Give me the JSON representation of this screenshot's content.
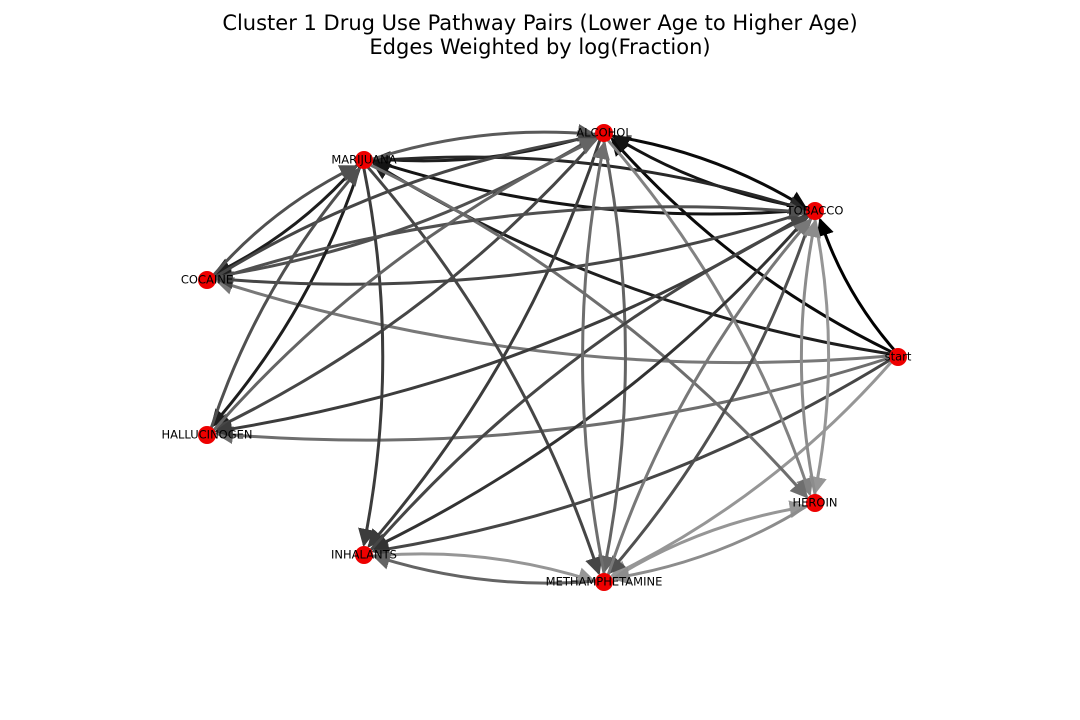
{
  "figure": {
    "title_line1": "Cluster 1 Drug Use Pathway Pairs (Lower Age to Higher Age)",
    "title_line2": "Edges Weighted by log(Fraction)"
  },
  "colors": {
    "node": "#ee0000",
    "background": "#ffffff"
  },
  "nodes": [
    {
      "id": "ALCOHOL",
      "label": "ALCOHOL"
    },
    {
      "id": "MARIJUANA",
      "label": "MARIJUANA"
    },
    {
      "id": "TOBACCO",
      "label": "TOBACCO"
    },
    {
      "id": "COCAINE",
      "label": "COCAINE"
    },
    {
      "id": "start",
      "label": "start"
    },
    {
      "id": "HALLUCINOGEN",
      "label": "HALLUCINOGEN"
    },
    {
      "id": "HEROIN",
      "label": "HEROIN"
    },
    {
      "id": "INHALANTS",
      "label": "INHALANTS"
    },
    {
      "id": "METHAMPHETAMINE",
      "label": "METHAMPHETAMINE"
    }
  ],
  "edges": [
    {
      "source": "start",
      "target": "TOBACCO",
      "gray": 0.0
    },
    {
      "source": "start",
      "target": "ALCOHOL",
      "gray": 0.05
    },
    {
      "source": "start",
      "target": "MARIJUANA",
      "gray": 0.15
    },
    {
      "source": "start",
      "target": "COCAINE",
      "gray": 0.6
    },
    {
      "source": "start",
      "target": "HALLUCINOGEN",
      "gray": 0.55
    },
    {
      "source": "start",
      "target": "INHALANTS",
      "gray": 0.35
    },
    {
      "source": "start",
      "target": "METHAMPHETAMINE",
      "gray": 0.75
    },
    {
      "source": "ALCOHOL",
      "target": "TOBACCO",
      "gray": 0.05
    },
    {
      "source": "TOBACCO",
      "target": "ALCOHOL",
      "gray": 0.1
    },
    {
      "source": "ALCOHOL",
      "target": "MARIJUANA",
      "gray": 0.15
    },
    {
      "source": "MARIJUANA",
      "target": "ALCOHOL",
      "gray": 0.45
    },
    {
      "source": "TOBACCO",
      "target": "MARIJUANA",
      "gray": 0.1
    },
    {
      "source": "MARIJUANA",
      "target": "TOBACCO",
      "gray": 0.2
    },
    {
      "source": "ALCOHOL",
      "target": "COCAINE",
      "gray": 0.4
    },
    {
      "source": "ALCOHOL",
      "target": "HALLUCINOGEN",
      "gray": 0.35
    },
    {
      "source": "ALCOHOL",
      "target": "INHALANTS",
      "gray": 0.3
    },
    {
      "source": "ALCOHOL",
      "target": "METHAMPHETAMINE",
      "gray": 0.5
    },
    {
      "source": "ALCOHOL",
      "target": "HEROIN",
      "gray": 0.65
    },
    {
      "source": "MARIJUANA",
      "target": "COCAINE",
      "gray": 0.15
    },
    {
      "source": "MARIJUANA",
      "target": "HALLUCINOGEN",
      "gray": 0.15
    },
    {
      "source": "MARIJUANA",
      "target": "INHALANTS",
      "gray": 0.3
    },
    {
      "source": "MARIJUANA",
      "target": "METHAMPHETAMINE",
      "gray": 0.35
    },
    {
      "source": "MARIJUANA",
      "target": "HEROIN",
      "gray": 0.55
    },
    {
      "source": "TOBACCO",
      "target": "COCAINE",
      "gray": 0.35
    },
    {
      "source": "TOBACCO",
      "target": "HALLUCINOGEN",
      "gray": 0.3
    },
    {
      "source": "TOBACCO",
      "target": "INHALANTS",
      "gray": 0.25
    },
    {
      "source": "TOBACCO",
      "target": "METHAMPHETAMINE",
      "gray": 0.4
    },
    {
      "source": "TOBACCO",
      "target": "HEROIN",
      "gray": 0.75
    },
    {
      "source": "COCAINE",
      "target": "ALCOHOL",
      "gray": 0.35
    },
    {
      "source": "COCAINE",
      "target": "TOBACCO",
      "gray": 0.4
    },
    {
      "source": "COCAINE",
      "target": "MARIJUANA",
      "gray": 0.4
    },
    {
      "source": "HALLUCINOGEN",
      "target": "ALCOHOL",
      "gray": 0.5
    },
    {
      "source": "HALLUCINOGEN",
      "target": "MARIJUANA",
      "gray": 0.4
    },
    {
      "source": "INHALANTS",
      "target": "TOBACCO",
      "gray": 0.35
    },
    {
      "source": "INHALANTS",
      "target": "METHAMPHETAMINE",
      "gray": 0.75
    },
    {
      "source": "METHAMPHETAMINE",
      "target": "INHALANTS",
      "gray": 0.5
    },
    {
      "source": "METHAMPHETAMINE",
      "target": "ALCOHOL",
      "gray": 0.55
    },
    {
      "source": "METHAMPHETAMINE",
      "target": "TOBACCO",
      "gray": 0.6
    },
    {
      "source": "METHAMPHETAMINE",
      "target": "HEROIN",
      "gray": 0.75
    },
    {
      "source": "HEROIN",
      "target": "METHAMPHETAMINE",
      "gray": 0.7
    },
    {
      "source": "HEROIN",
      "target": "TOBACCO",
      "gray": 0.7
    }
  ]
}
